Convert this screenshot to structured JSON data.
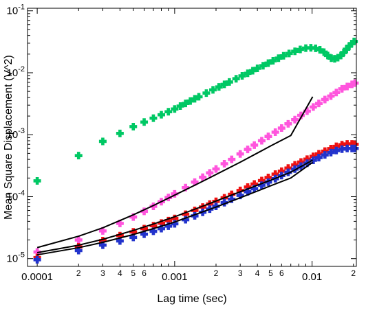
{
  "chart_data": {
    "type": "scatter",
    "title": "",
    "xlabel": "Lag time (sec)",
    "ylabel": "Mean Square Displacement (V^2)",
    "x_scale": "log",
    "y_scale": "log",
    "xlim": [
      8.5e-05,
      0.021
    ],
    "ylim": [
      7.5e-06,
      0.11
    ],
    "grid": false,
    "legend": "none",
    "x_major_ticks": [
      {
        "value": 0.0001,
        "label": "0.0001"
      },
      {
        "value": 0.001,
        "label": "0.001"
      },
      {
        "value": 0.01,
        "label": "0.01"
      }
    ],
    "x_minor_ticks": [
      {
        "value": 0.0002,
        "label": "2"
      },
      {
        "value": 0.0003,
        "label": "3"
      },
      {
        "value": 0.0004,
        "label": "4"
      },
      {
        "value": 0.0005,
        "label": "5"
      },
      {
        "value": 0.0006,
        "label": "6"
      },
      {
        "value": 0.0007,
        "label": ""
      },
      {
        "value": 0.0008,
        "label": ""
      },
      {
        "value": 0.0009,
        "label": ""
      },
      {
        "value": 0.002,
        "label": "2"
      },
      {
        "value": 0.003,
        "label": "3"
      },
      {
        "value": 0.004,
        "label": "4"
      },
      {
        "value": 0.005,
        "label": "5"
      },
      {
        "value": 0.006,
        "label": "6"
      },
      {
        "value": 0.007,
        "label": ""
      },
      {
        "value": 0.008,
        "label": ""
      },
      {
        "value": 0.009,
        "label": ""
      },
      {
        "value": 0.02,
        "label": "2"
      }
    ],
    "y_major_ticks": [
      {
        "value": 1e-05,
        "mant": "10",
        "exp": "-5"
      },
      {
        "value": 0.0001,
        "mant": "10",
        "exp": "-4"
      },
      {
        "value": 0.001,
        "mant": "10",
        "exp": "-3"
      },
      {
        "value": 0.01,
        "mant": "10",
        "exp": "-2"
      },
      {
        "value": 0.1,
        "mant": "10",
        "exp": "-1"
      }
    ],
    "series": [
      {
        "color": "#00c864",
        "marker": "plus",
        "x": [
          0.0001,
          0.0002,
          0.0003,
          0.0004,
          0.0005,
          0.0006,
          0.0007,
          0.0008,
          0.0009,
          0.001,
          0.0011,
          0.0012,
          0.0013,
          0.0014,
          0.0015,
          0.0017,
          0.0019,
          0.0021,
          0.0023,
          0.0025,
          0.0028,
          0.0031,
          0.0034,
          0.0037,
          0.004,
          0.0044,
          0.0048,
          0.0052,
          0.0057,
          0.0062,
          0.0068,
          0.0075,
          0.0082,
          0.009,
          0.0098,
          0.0106,
          0.0114,
          0.0122,
          0.013,
          0.0138,
          0.0146,
          0.0154,
          0.0162,
          0.017,
          0.0178,
          0.0186,
          0.0194,
          0.0202
        ],
        "y": [
          0.00018,
          0.00046,
          0.00078,
          0.00105,
          0.00135,
          0.0016,
          0.00185,
          0.0021,
          0.00235,
          0.0026,
          0.0029,
          0.0032,
          0.0035,
          0.0038,
          0.0041,
          0.0047,
          0.0053,
          0.0059,
          0.0065,
          0.0071,
          0.008,
          0.0089,
          0.0098,
          0.0108,
          0.0118,
          0.013,
          0.0143,
          0.0156,
          0.0172,
          0.0188,
          0.0205,
          0.0222,
          0.0238,
          0.025,
          0.0253,
          0.0248,
          0.0235,
          0.0215,
          0.019,
          0.0172,
          0.0168,
          0.0175,
          0.019,
          0.0212,
          0.024,
          0.0268,
          0.0295,
          0.032
        ]
      },
      {
        "color": "#ff55dd",
        "marker": "plus",
        "x": [
          0.0001,
          0.0002,
          0.0003,
          0.0004,
          0.0005,
          0.0006,
          0.0007,
          0.0008,
          0.0009,
          0.001,
          0.0012,
          0.0014,
          0.0016,
          0.0018,
          0.002,
          0.0023,
          0.0026,
          0.003,
          0.0034,
          0.0038,
          0.0043,
          0.0048,
          0.0054,
          0.006,
          0.0067,
          0.0075,
          0.0083,
          0.0092,
          0.0102,
          0.0112,
          0.0124,
          0.0137,
          0.015,
          0.0165,
          0.018,
          0.0195,
          0.0205
        ],
        "y": [
          1.28e-05,
          2e-05,
          2.8e-05,
          3.7e-05,
          4.7e-05,
          5.8e-05,
          7e-05,
          8.3e-05,
          9.7e-05,
          0.000111,
          0.00014,
          0.000172,
          0.000206,
          0.000242,
          0.00028,
          0.00034,
          0.0004,
          0.00049,
          0.00058,
          0.00068,
          0.0008,
          0.00094,
          0.0011,
          0.00128,
          0.0015,
          0.00175,
          0.00205,
          0.0024,
          0.0028,
          0.0032,
          0.0037,
          0.0042,
          0.0048,
          0.0055,
          0.006,
          0.0065,
          0.0068
        ]
      },
      {
        "color": "#ee1111",
        "marker": "plus",
        "x": [
          0.0001,
          0.0002,
          0.0003,
          0.0004,
          0.0005,
          0.0006,
          0.0007,
          0.0008,
          0.0009,
          0.001,
          0.0012,
          0.0014,
          0.0016,
          0.0018,
          0.002,
          0.0023,
          0.0026,
          0.003,
          0.0034,
          0.0038,
          0.0043,
          0.0048,
          0.0054,
          0.006,
          0.0067,
          0.0075,
          0.0083,
          0.0092,
          0.0102,
          0.0112,
          0.0124,
          0.0137,
          0.015,
          0.0165,
          0.018,
          0.0195,
          0.0205
        ],
        "y": [
          1.04e-05,
          1.55e-05,
          1.95e-05,
          2.35e-05,
          2.7e-05,
          3.05e-05,
          3.4e-05,
          3.75e-05,
          4.1e-05,
          4.45e-05,
          5.2e-05,
          6e-05,
          6.8e-05,
          7.6e-05,
          8.4e-05,
          9.6e-05,
          0.000109,
          0.000126,
          0.000143,
          0.00016,
          0.000182,
          0.000204,
          0.000231,
          0.000258,
          0.00029,
          0.000326,
          0.000362,
          0.000403,
          0.000448,
          0.000492,
          0.000543,
          0.000597,
          0.00065,
          0.00069,
          0.00071,
          0.00071,
          0.0007
        ]
      },
      {
        "color": "#2233cc",
        "marker": "plus",
        "x": [
          0.0001,
          0.0002,
          0.0003,
          0.0004,
          0.0005,
          0.0006,
          0.0007,
          0.0008,
          0.0009,
          0.001,
          0.0012,
          0.0014,
          0.0016,
          0.0018,
          0.002,
          0.0023,
          0.0026,
          0.003,
          0.0034,
          0.0038,
          0.0043,
          0.0048,
          0.0054,
          0.006,
          0.0067,
          0.0075,
          0.0083,
          0.0092,
          0.0102,
          0.0112,
          0.0124,
          0.0137,
          0.015,
          0.0165,
          0.018,
          0.0195,
          0.0205
        ],
        "y": [
          9.6e-06,
          1.35e-05,
          1.65e-05,
          1.93e-05,
          2.2e-05,
          2.48e-05,
          2.76e-05,
          3.05e-05,
          3.35e-05,
          3.65e-05,
          4.25e-05,
          4.9e-05,
          5.6e-05,
          6.3e-05,
          7e-05,
          8e-05,
          9.1e-05,
          0.000105,
          0.00012,
          0.000135,
          0.000153,
          0.000172,
          0.000195,
          0.000219,
          0.000247,
          0.000279,
          0.000311,
          0.000347,
          0.000387,
          0.000427,
          0.000472,
          0.000515,
          0.000555,
          0.000585,
          0.0006,
          0.0006,
          0.0006
        ]
      }
    ],
    "fit_lines": [
      {
        "color": "#000000",
        "x": [
          0.0001,
          0.0002,
          0.0003,
          0.0005,
          0.0007,
          0.001,
          0.0015,
          0.002,
          0.003,
          0.005,
          0.007,
          0.0101
        ],
        "y": [
          1.51e-05,
          2.3e-05,
          3.15e-05,
          5.1e-05,
          7.2e-05,
          0.000106,
          0.000165,
          0.000228,
          0.00036,
          0.00066,
          0.00097,
          0.0041
        ]
      },
      {
        "color": "#000000",
        "x": [
          0.0001,
          0.0002,
          0.0003,
          0.0005,
          0.0007,
          0.001,
          0.0015,
          0.002,
          0.003,
          0.005,
          0.007,
          0.0101
        ],
        "y": [
          1.25e-05,
          1.65e-05,
          2.05e-05,
          2.85e-05,
          3.62e-05,
          4.75e-05,
          6.65e-05,
          8.5e-05,
          0.00012,
          0.000185,
          0.000248,
          0.00039
        ]
      },
      {
        "color": "#000000",
        "x": [
          0.0001,
          0.0002,
          0.0003,
          0.0005,
          0.0007,
          0.001,
          0.0015,
          0.002,
          0.003,
          0.005,
          0.007,
          0.0101
        ],
        "y": [
          1.15e-05,
          1.5e-05,
          1.83e-05,
          2.45e-05,
          3.05e-05,
          3.9e-05,
          5.4e-05,
          6.8e-05,
          9.6e-05,
          0.00015,
          0.0002,
          0.00036
        ]
      }
    ]
  }
}
